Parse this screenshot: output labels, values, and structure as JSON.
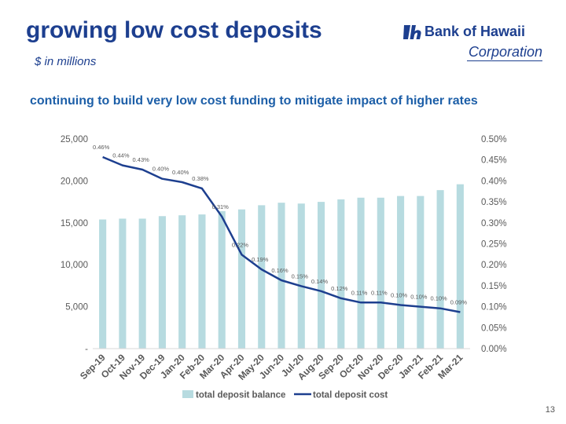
{
  "header": {
    "title": "growing low cost deposits",
    "subtitle": "$ in millions",
    "headline": "continuing to build very low cost funding to mitigate impact of higher rates"
  },
  "logo": {
    "name": "Bank of Hawaii",
    "corporation": "Corporation"
  },
  "footer": {
    "page_number": "13"
  },
  "colors": {
    "bar": "#b7dbe0",
    "line": "#1d3f8f",
    "text": "#595959",
    "grid": "#d9d9d9"
  },
  "chart_data": {
    "type": "bar",
    "categories": [
      "Sep-19",
      "Oct-19",
      "Nov-19",
      "Dec-19",
      "Jan-20",
      "Feb-20",
      "Mar-20",
      "Apr-20",
      "May-20",
      "Jun-20",
      "Jul-20",
      "Aug-20",
      "Sep-20",
      "Oct-20",
      "Nov-20",
      "Dec-20",
      "Jan-21",
      "Feb-21",
      "Mar-21"
    ],
    "series": [
      {
        "name": "total deposit balance",
        "type": "bar",
        "axis": "left",
        "values": [
          15400,
          15500,
          15500,
          15800,
          15900,
          16000,
          16400,
          16600,
          17100,
          17400,
          17300,
          17500,
          17800,
          18000,
          18000,
          18200,
          18200,
          18900,
          19600
        ]
      },
      {
        "name": "total deposit cost",
        "type": "line",
        "axis": "right",
        "values": [
          0.46,
          0.44,
          0.43,
          0.4,
          0.4,
          0.38,
          0.31,
          0.22,
          0.19,
          0.16,
          0.15,
          0.14,
          0.12,
          0.11,
          0.11,
          0.1,
          0.1,
          0.1,
          0.09
        ],
        "plot_values": [
          0.457,
          0.437,
          0.427,
          0.405,
          0.397,
          0.382,
          0.315,
          0.224,
          0.189,
          0.163,
          0.149,
          0.137,
          0.12,
          0.11,
          0.11,
          0.104,
          0.1,
          0.096,
          0.087
        ],
        "labels": [
          "0.46%",
          "0.44%",
          "0.43%",
          "0.40%",
          "0.40%",
          "0.38%",
          "0.31%",
          "0.22%",
          "0.19%",
          "0.16%",
          "0.15%",
          "0.14%",
          "0.12%",
          "0.11%",
          "0.11%",
          "0.10%",
          "0.10%",
          "0.10%",
          "0.09%"
        ]
      }
    ],
    "y_left": {
      "ylim": [
        0,
        25000
      ],
      "ticks": [
        0,
        5000,
        10000,
        15000,
        20000,
        25000
      ],
      "tick_labels": [
        "-",
        "5,000",
        "10,000",
        "15,000",
        "20,000",
        "25,000"
      ]
    },
    "y_right": {
      "ylim": [
        0,
        0.5
      ],
      "ticks": [
        0,
        0.05,
        0.1,
        0.15,
        0.2,
        0.25,
        0.3,
        0.35,
        0.4,
        0.45,
        0.5
      ],
      "tick_labels": [
        "0.00%",
        "0.05%",
        "0.10%",
        "0.15%",
        "0.20%",
        "0.25%",
        "0.30%",
        "0.35%",
        "0.40%",
        "0.45%",
        "0.50%"
      ]
    },
    "grid": false,
    "legend_position": "bottom"
  }
}
